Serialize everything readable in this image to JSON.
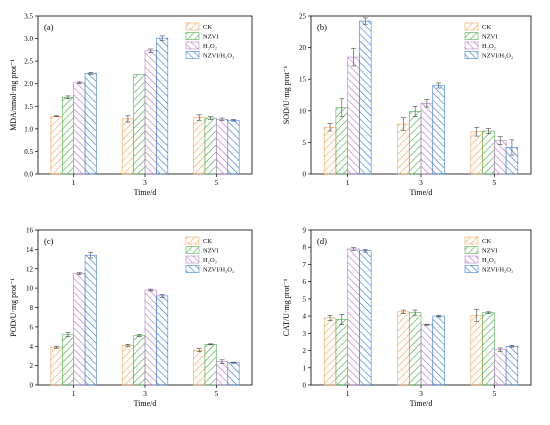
{
  "colors": {
    "CK": "#f2a65a",
    "NZVI": "#4caf50",
    "H2O2": "#b07cc6",
    "NZVI/H2O2": "#3d7fd6"
  },
  "chart_data": [
    {
      "type": "bar",
      "panel_label": "(a)",
      "categories": [
        "1",
        "3",
        "5"
      ],
      "xlabel": "Time/d",
      "ylabel": "MDA/nmol·mg prot⁻¹",
      "ylim": [
        0,
        3.5
      ],
      "yticks": [
        "0.0",
        "0.5",
        "1.0",
        "1.5",
        "2.0",
        "2.5",
        "3.0",
        "3.5"
      ],
      "legend_position": "top-right",
      "legend": [
        "CK",
        "NZVI",
        "H₂O₂",
        "NZVI/H₂O₂"
      ],
      "series": [
        {
          "name": "CK",
          "values": [
            1.28,
            1.22,
            1.25
          ],
          "errors": [
            0.01,
            0.07,
            0.06
          ]
        },
        {
          "name": "NZVI",
          "values": [
            1.7,
            2.2,
            1.24
          ],
          "errors": [
            0.03,
            0.0,
            0.03
          ]
        },
        {
          "name": "H₂O₂",
          "values": [
            2.02,
            2.73,
            1.21
          ],
          "errors": [
            0.02,
            0.04,
            0.03
          ]
        },
        {
          "name": "NZVI/H₂O₂",
          "values": [
            2.23,
            3.01,
            1.19
          ],
          "errors": [
            0.02,
            0.05,
            0.02
          ]
        }
      ]
    },
    {
      "type": "bar",
      "panel_label": "(b)",
      "categories": [
        "1",
        "3",
        "5"
      ],
      "xlabel": "Time/d",
      "ylabel": "SOD/U·mg prot⁻¹",
      "ylim": [
        0,
        25
      ],
      "yticks": [
        "0",
        "5",
        "10",
        "15",
        "20",
        "25"
      ],
      "legend_position": "top-right",
      "legend": [
        "CK",
        "NZVI",
        "H₂O₂",
        "NZVI/H₂O₂"
      ],
      "series": [
        {
          "name": "CK",
          "values": [
            7.4,
            7.9,
            6.7
          ],
          "errors": [
            0.6,
            1.0,
            0.7
          ]
        },
        {
          "name": "NZVI",
          "values": [
            10.5,
            9.9,
            6.8
          ],
          "errors": [
            1.4,
            0.8,
            0.4
          ]
        },
        {
          "name": "H₂O₂",
          "values": [
            18.5,
            11.2,
            5.3
          ],
          "errors": [
            1.4,
            0.6,
            0.6
          ]
        },
        {
          "name": "NZVI/H₂O₂",
          "values": [
            24.2,
            14.0,
            4.2
          ],
          "errors": [
            0.5,
            0.4,
            1.2
          ]
        }
      ]
    },
    {
      "type": "bar",
      "panel_label": "(c)",
      "categories": [
        "1",
        "3",
        "5"
      ],
      "xlabel": "Time/d",
      "ylabel": "POD/U·mg prot⁻¹",
      "ylim": [
        0,
        16
      ],
      "yticks": [
        "0",
        "2",
        "4",
        "6",
        "8",
        "10",
        "12",
        "14",
        "16"
      ],
      "legend_position": "top-right",
      "legend": [
        "CK",
        "NZVI",
        "H₂O₂",
        "NZVI/H₂O₂"
      ],
      "series": [
        {
          "name": "CK",
          "values": [
            3.9,
            4.1,
            3.6
          ],
          "errors": [
            0.1,
            0.1,
            0.15
          ]
        },
        {
          "name": "NZVI",
          "values": [
            5.2,
            5.1,
            4.2
          ],
          "errors": [
            0.2,
            0.1,
            0.05
          ]
        },
        {
          "name": "H₂O₂",
          "values": [
            11.5,
            9.8,
            2.4
          ],
          "errors": [
            0.1,
            0.1,
            0.2
          ]
        },
        {
          "name": "NZVI/H₂O₂",
          "values": [
            13.4,
            9.2,
            2.3
          ],
          "errors": [
            0.3,
            0.15,
            0.05
          ]
        }
      ]
    },
    {
      "type": "bar",
      "panel_label": "(d)",
      "categories": [
        "1",
        "3",
        "5"
      ],
      "xlabel": "Time/d",
      "ylabel": "CAT/U·mg prot⁻¹",
      "ylim": [
        0,
        9
      ],
      "yticks": [
        "0",
        "1",
        "2",
        "3",
        "4",
        "5",
        "6",
        "7",
        "8",
        "9"
      ],
      "legend_position": "top-right",
      "legend": [
        "CK",
        "NZVI",
        "H₂O₂",
        "NZVI/H₂O₂"
      ],
      "series": [
        {
          "name": "CK",
          "values": [
            3.9,
            4.25,
            4.05
          ],
          "errors": [
            0.15,
            0.1,
            0.35
          ]
        },
        {
          "name": "NZVI",
          "values": [
            3.8,
            4.2,
            4.2
          ],
          "errors": [
            0.3,
            0.15,
            0.05
          ]
        },
        {
          "name": "H₂O₂",
          "values": [
            7.9,
            3.5,
            2.05
          ],
          "errors": [
            0.08,
            0.03,
            0.1
          ]
        },
        {
          "name": "NZVI/H₂O₂",
          "values": [
            7.8,
            4.0,
            2.25
          ],
          "errors": [
            0.08,
            0.05,
            0.05
          ]
        }
      ]
    }
  ]
}
